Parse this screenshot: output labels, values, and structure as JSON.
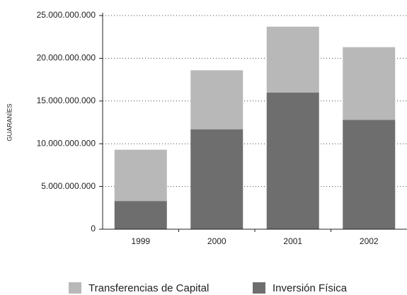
{
  "chart_data": {
    "type": "stacked_bar",
    "ylabel": "GUARANÍES",
    "categories": [
      "1999",
      "2000",
      "2001",
      "2002"
    ],
    "series": [
      {
        "name": "Inversión Física",
        "color": "#6e6e6e",
        "values": [
          3300000000,
          11700000000,
          16000000000,
          12800000000
        ]
      },
      {
        "name": "Transferencias de Capital",
        "color": "#b8b8b9",
        "values": [
          6000000000,
          6900000000,
          7700000000,
          8500000000
        ]
      }
    ],
    "ylim": [
      0,
      25000000000
    ],
    "yticks": [
      0,
      {
        "value": 5000000000,
        "label": "5.000.000.000"
      },
      {
        "value": 10000000000,
        "label": "10.000.000.000"
      },
      {
        "value": 15000000000,
        "label": "15.000.000.000"
      },
      {
        "value": 20000000000,
        "label": "20.000.000.000"
      },
      {
        "value": 25000000000,
        "label": "25.000.000.000"
      }
    ],
    "grid": true,
    "legend": "bottom"
  }
}
